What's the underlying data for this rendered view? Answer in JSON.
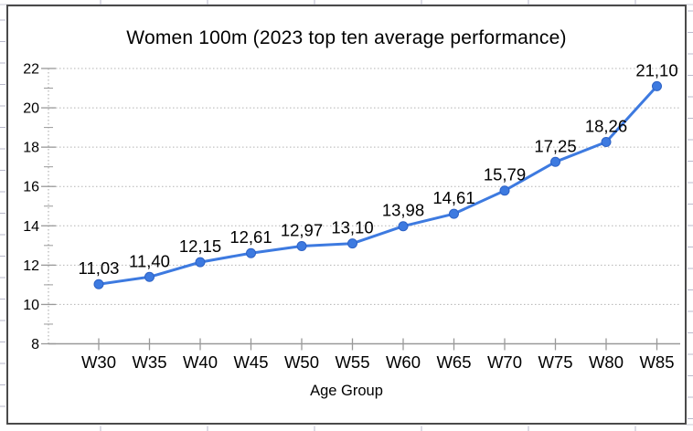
{
  "chart_data": {
    "type": "line",
    "title": "Women 100m (2023 top ten average performance)",
    "xlabel": "Age Group",
    "ylabel": "",
    "categories": [
      "W30",
      "W35",
      "W40",
      "W45",
      "W50",
      "W55",
      "W60",
      "W65",
      "W70",
      "W75",
      "W80",
      "W85"
    ],
    "values": [
      11.03,
      11.4,
      12.15,
      12.61,
      12.97,
      13.1,
      13.98,
      14.61,
      15.79,
      17.25,
      18.26,
      21.1
    ],
    "point_labels": [
      "11,03",
      "11,40",
      "12,15",
      "12,61",
      "12,97",
      "13,10",
      "13,98",
      "14,61",
      "15,79",
      "17,25",
      "18,26",
      "21,10"
    ],
    "ylim": [
      8,
      22
    ],
    "y_major_ticks": [
      8,
      10,
      12,
      14,
      16,
      18,
      20,
      22
    ],
    "y_minor_step": 1,
    "grid": "horizontal-dotted",
    "legend": "none",
    "line_color": "#3d7ae0",
    "marker": "circle",
    "label_decimal_separator": ",",
    "text_color": "#000000",
    "gridline_color": "#b3b3b3",
    "axis_color": "#999999"
  }
}
